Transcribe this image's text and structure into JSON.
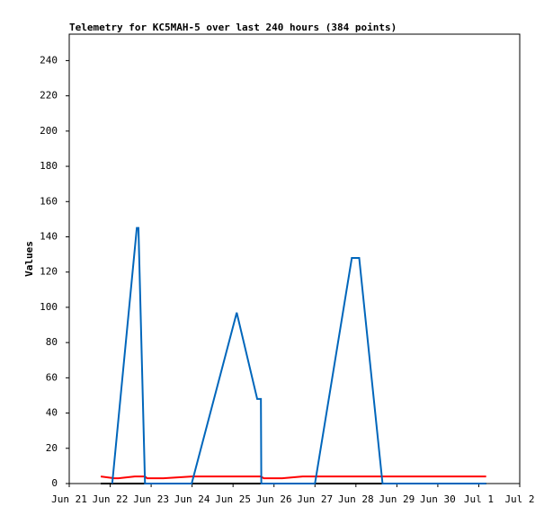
{
  "chart_data": {
    "type": "line",
    "title": "Telemetry for KC5MAH-5 over last 240 hours (384 points)",
    "y_label": "Values",
    "ylim": [
      0,
      255
    ],
    "yticks": [
      0,
      20,
      40,
      60,
      80,
      100,
      120,
      140,
      160,
      180,
      200,
      220,
      240
    ],
    "xlim": [
      0,
      11
    ],
    "xticks": [
      {
        "value": 0,
        "label": "Jun 21"
      },
      {
        "value": 1,
        "label": "Jun 22"
      },
      {
        "value": 2,
        "label": "Jun 23"
      },
      {
        "value": 3,
        "label": "Jun 24"
      },
      {
        "value": 4,
        "label": "Jun 25"
      },
      {
        "value": 5,
        "label": "Jun 26"
      },
      {
        "value": 6,
        "label": "Jun 27"
      },
      {
        "value": 7,
        "label": "Jun 28"
      },
      {
        "value": 8,
        "label": "Jun 29"
      },
      {
        "value": 9,
        "label": "Jun 30"
      },
      {
        "value": 10,
        "label": "Jul 1"
      },
      {
        "value": 11,
        "label": "Jul 2"
      }
    ],
    "series": [
      {
        "color": "#000000",
        "x": [
          0.77,
          10.18
        ],
        "values": [
          0,
          0
        ]
      },
      {
        "color": "#ff0000",
        "x": [
          0.77,
          1.1,
          1.2,
          1.6,
          1.85,
          1.9,
          2.3,
          3.0,
          4.68,
          4.75,
          5.2,
          5.7,
          10.18
        ],
        "values": [
          4,
          3,
          3,
          4,
          4,
          3,
          3,
          4,
          4,
          3,
          3,
          4,
          4
        ]
      },
      {
        "color": "#0066bb",
        "x": [
          1.05,
          1.65,
          1.69,
          1.85,
          2.99,
          4.09,
          4.59,
          4.68,
          4.69,
          6.0,
          6.9,
          7.08,
          7.65,
          10.18
        ],
        "values": [
          0,
          145,
          145,
          0,
          0,
          97,
          48,
          48,
          0,
          0,
          128,
          128,
          0,
          0
        ]
      }
    ]
  }
}
